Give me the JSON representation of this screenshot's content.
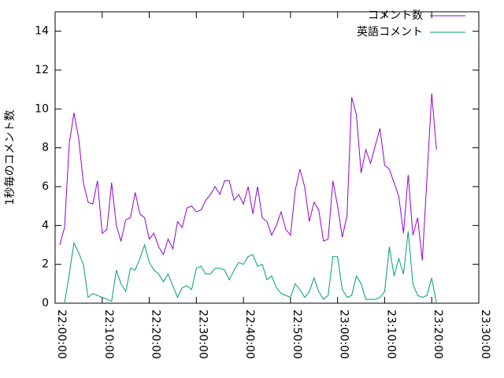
{
  "chart_data": {
    "type": "line",
    "y_label": "1秒毎のコメント数",
    "x": [
      "22:01:00",
      "22:02:00",
      "22:03:00",
      "22:04:00",
      "22:05:00",
      "22:06:00",
      "22:07:00",
      "22:08:00",
      "22:09:00",
      "22:10:00",
      "22:11:00",
      "22:12:00",
      "22:13:00",
      "22:14:00",
      "22:15:00",
      "22:16:00",
      "22:17:00",
      "22:18:00",
      "22:19:00",
      "22:20:00",
      "22:21:00",
      "22:22:00",
      "22:23:00",
      "22:24:00",
      "22:25:00",
      "22:26:00",
      "22:27:00",
      "22:28:00",
      "22:29:00",
      "22:30:00",
      "22:31:00",
      "22:32:00",
      "22:33:00",
      "22:34:00",
      "22:35:00",
      "22:36:00",
      "22:37:00",
      "22:38:00",
      "22:39:00",
      "22:40:00",
      "22:41:00",
      "22:42:00",
      "22:43:00",
      "22:44:00",
      "22:45:00",
      "22:46:00",
      "22:47:00",
      "22:48:00",
      "22:49:00",
      "22:50:00",
      "22:51:00",
      "22:52:00",
      "22:53:00",
      "22:54:00",
      "22:55:00",
      "22:56:00",
      "22:57:00",
      "22:58:00",
      "22:59:00",
      "23:00:00",
      "23:01:00",
      "23:02:00",
      "23:03:00",
      "23:04:00",
      "23:05:00",
      "23:06:00",
      "23:07:00",
      "23:08:00",
      "23:09:00",
      "23:10:00",
      "23:11:00",
      "23:12:00",
      "23:13:00",
      "23:14:00",
      "23:15:00",
      "23:16:00",
      "23:17:00",
      "23:18:00",
      "23:19:00",
      "23:20:00",
      "23:21:00"
    ],
    "series": [
      {
        "name": "コメント数",
        "color": "#9400d3",
        "values": [
          3.0,
          3.9,
          8.2,
          9.8,
          8.5,
          6.2,
          5.2,
          5.1,
          6.3,
          3.6,
          3.8,
          6.2,
          4.0,
          3.2,
          4.3,
          4.4,
          5.7,
          4.6,
          4.4,
          3.3,
          3.6,
          2.9,
          2.5,
          3.3,
          2.8,
          4.2,
          3.9,
          4.9,
          5.0,
          4.7,
          4.8,
          5.3,
          5.6,
          6.0,
          5.6,
          6.3,
          6.3,
          5.3,
          5.6,
          5.1,
          6.0,
          4.6,
          6.0,
          4.4,
          4.2,
          3.5,
          4.0,
          4.7,
          3.8,
          3.5,
          5.8,
          6.9,
          6.0,
          4.2,
          5.2,
          4.8,
          3.2,
          3.3,
          6.3,
          5.0,
          3.4,
          4.5,
          10.6,
          9.7,
          6.7,
          7.9,
          7.2,
          8.1,
          9.0,
          7.1,
          6.9,
          6.2,
          5.5,
          3.6,
          6.6,
          3.5,
          4.4,
          2.2,
          6.5,
          10.8,
          7.9
        ]
      },
      {
        "name": "英語コメント",
        "color": "#009e73",
        "values": [
          null,
          0,
          1.5,
          3.1,
          2.6,
          2.0,
          0.3,
          0.5,
          0.4,
          0.3,
          0.2,
          0.1,
          1.7,
          1.0,
          0.6,
          1.8,
          1.7,
          2.3,
          3.0,
          2.1,
          1.7,
          1.5,
          1.1,
          1.5,
          0.9,
          0.3,
          0.8,
          0.9,
          0.7,
          1.8,
          1.9,
          1.5,
          1.5,
          1.8,
          1.8,
          1.7,
          1.2,
          1.7,
          2.1,
          2.0,
          2.4,
          2.5,
          1.9,
          2.0,
          1.2,
          1.4,
          0.8,
          0.5,
          0.4,
          0.3,
          1.0,
          0.7,
          0.3,
          0.6,
          1.3,
          0.6,
          0.2,
          0.4,
          2.4,
          2.4,
          0.7,
          0.3,
          0.4,
          1.4,
          1.0,
          0.2,
          0.2,
          0.2,
          0.3,
          0.6,
          2.9,
          1.4,
          2.3,
          1.5,
          3.7,
          1.0,
          0.4,
          0.3,
          0.4,
          1.3,
          0.0
        ]
      }
    ],
    "xlim": [
      "22:00:00",
      "23:30:00"
    ],
    "xticks": [
      "22:00:00",
      "22:10:00",
      "22:20:00",
      "22:30:00",
      "22:40:00",
      "22:50:00",
      "23:00:00",
      "23:10:00",
      "23:20:00",
      "23:30:00"
    ],
    "ylim": [
      0,
      15
    ],
    "yticks": [
      0,
      2,
      4,
      6,
      8,
      10,
      12,
      14
    ],
    "legend": "top-right"
  }
}
